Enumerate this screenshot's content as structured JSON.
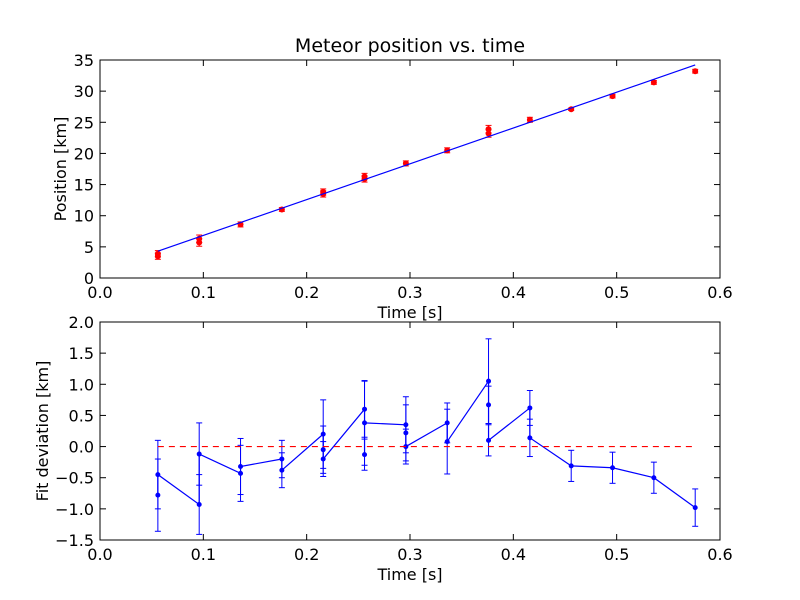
{
  "chart_data": [
    {
      "type": "scatter",
      "title": "Meteor position vs. time",
      "xlabel": "Time [s]",
      "ylabel": "Position [km]",
      "xlim": [
        0.0,
        0.6
      ],
      "ylim": [
        0,
        35
      ],
      "xticks": [
        "0.0",
        "0.1",
        "0.2",
        "0.3",
        "0.4",
        "0.5",
        "0.6"
      ],
      "yticks": [
        "0",
        "5",
        "10",
        "15",
        "20",
        "25",
        "30",
        "35"
      ],
      "grid": false,
      "colors": {
        "points": "#ff0000",
        "fit": "#0000ff"
      },
      "series": [
        {
          "kind": "points-with-error",
          "x": [
            0.056,
            0.056,
            0.096,
            0.096,
            0.136,
            0.176,
            0.216,
            0.216,
            0.256,
            0.256,
            0.296,
            0.336,
            0.376,
            0.376,
            0.416,
            0.456,
            0.496,
            0.536,
            0.576
          ],
          "y": [
            3.9,
            3.5,
            6.3,
            5.7,
            8.6,
            11.0,
            13.8,
            13.5,
            16.3,
            15.9,
            18.4,
            20.5,
            23.9,
            23.2,
            25.4,
            27.1,
            29.2,
            31.4,
            33.2
          ],
          "yerr": [
            0.5,
            0.5,
            0.6,
            0.6,
            0.4,
            0.3,
            0.5,
            0.5,
            0.5,
            0.5,
            0.4,
            0.4,
            0.6,
            0.6,
            0.4,
            0.2,
            0.3,
            0.3,
            0.3
          ]
        },
        {
          "kind": "line",
          "x": [
            0.056,
            0.576
          ],
          "y": [
            4.3,
            34.2
          ]
        }
      ]
    },
    {
      "type": "line",
      "xlabel": "Time [s]",
      "ylabel": "Fit deviation [km]",
      "xlim": [
        0.0,
        0.6
      ],
      "ylim": [
        -1.5,
        2.0
      ],
      "xticks": [
        "0.0",
        "0.1",
        "0.2",
        "0.3",
        "0.4",
        "0.5",
        "0.6"
      ],
      "yticks": [
        "−1.5",
        "−1.0",
        "−0.5",
        "0.0",
        "0.5",
        "1.0",
        "1.5",
        "2.0"
      ],
      "grid": false,
      "colors": {
        "line": "#0000ff",
        "zero": "#ff0000"
      },
      "series": [
        {
          "kind": "line-with-error",
          "x": [
            0.056,
            0.056,
            0.096,
            0.096,
            0.136,
            0.136,
            0.176,
            0.176,
            0.216,
            0.216,
            0.216,
            0.256,
            0.256,
            0.256,
            0.296,
            0.296,
            0.296,
            0.336,
            0.336,
            0.376,
            0.376,
            0.376,
            0.416,
            0.416,
            0.456,
            0.496,
            0.536,
            0.576
          ],
          "y": [
            -0.78,
            -0.45,
            -0.93,
            -0.12,
            -0.43,
            -0.32,
            -0.2,
            -0.38,
            0.2,
            -0.05,
            -0.2,
            0.6,
            -0.13,
            0.38,
            0.35,
            0.22,
            0.0,
            0.38,
            0.08,
            1.05,
            0.67,
            0.1,
            0.62,
            0.14,
            -0.31,
            -0.34,
            -0.5,
            -0.98
          ],
          "yerr": [
            0.58,
            0.55,
            0.48,
            0.5,
            0.45,
            0.45,
            0.3,
            0.28,
            0.55,
            0.38,
            0.28,
            0.45,
            0.25,
            0.68,
            0.45,
            0.45,
            0.28,
            0.32,
            0.52,
            0.68,
            0.3,
            0.25,
            0.28,
            0.3,
            0.25,
            0.25,
            0.25,
            0.3
          ]
        },
        {
          "kind": "dashed-line",
          "x": [
            0.056,
            0.576
          ],
          "y": [
            0.0,
            0.0
          ]
        }
      ]
    }
  ]
}
